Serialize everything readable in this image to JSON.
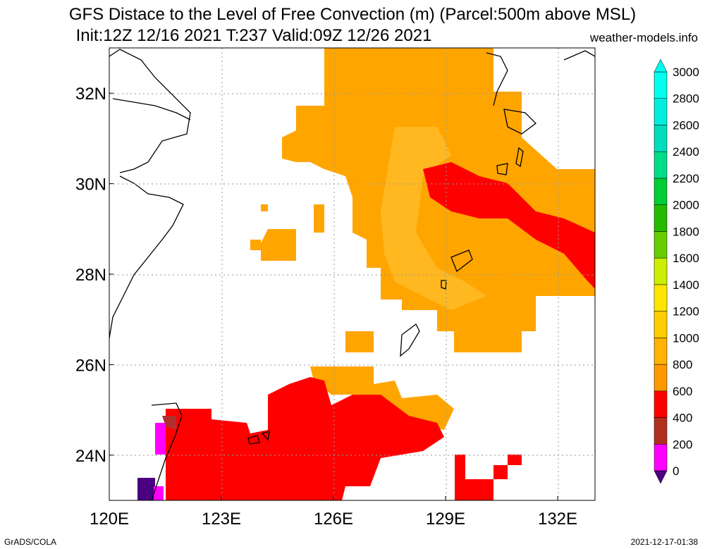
{
  "title_line1": "GFS Distace to the Level of Free Convection (m) (Parcel:500m above MSL)",
  "title_line2": "Init:12Z 12/16 2021 T:237 Valid:09Z 12/26 2021",
  "credit": "weather-models.info",
  "footer_left": "GrADS/COLA",
  "footer_right": "2021-12-17-01:38",
  "map": {
    "lon_range": [
      120,
      133
    ],
    "lat_range": [
      23,
      33
    ],
    "lon_ticks": [
      {
        "value": 120,
        "label": "120E"
      },
      {
        "value": 123,
        "label": "123E"
      },
      {
        "value": 126,
        "label": "126E"
      },
      {
        "value": 129,
        "label": "129E"
      },
      {
        "value": 132,
        "label": "132E"
      }
    ],
    "lat_ticks": [
      {
        "value": 24,
        "label": "24N"
      },
      {
        "value": 26,
        "label": "26N"
      },
      {
        "value": 28,
        "label": "28N"
      },
      {
        "value": 30,
        "label": "30N"
      },
      {
        "value": 32,
        "label": "32N"
      }
    ],
    "grid": true
  },
  "colorbar": {
    "levels": [
      "0",
      "200",
      "400",
      "600",
      "800",
      "1000",
      "1200",
      "1400",
      "1600",
      "1800",
      "2000",
      "2200",
      "2400",
      "2600",
      "2800",
      "3000"
    ],
    "colors": [
      "#4b0082",
      "#ff00ff",
      "#b03020",
      "#ff0000",
      "#ff9900",
      "#ffb300",
      "#ffcc00",
      "#ffe600",
      "#ccee00",
      "#66cc00",
      "#22bb00",
      "#00cc33",
      "#00dd88",
      "#00ddbb",
      "#00eedd",
      "#00ffee"
    ]
  },
  "colors": {
    "red": "#ff0000",
    "orange": "#ffa500",
    "light_orange": "#ffb820",
    "magenta": "#ff00ff",
    "purple": "#4b0082",
    "brown": "#b03030"
  }
}
